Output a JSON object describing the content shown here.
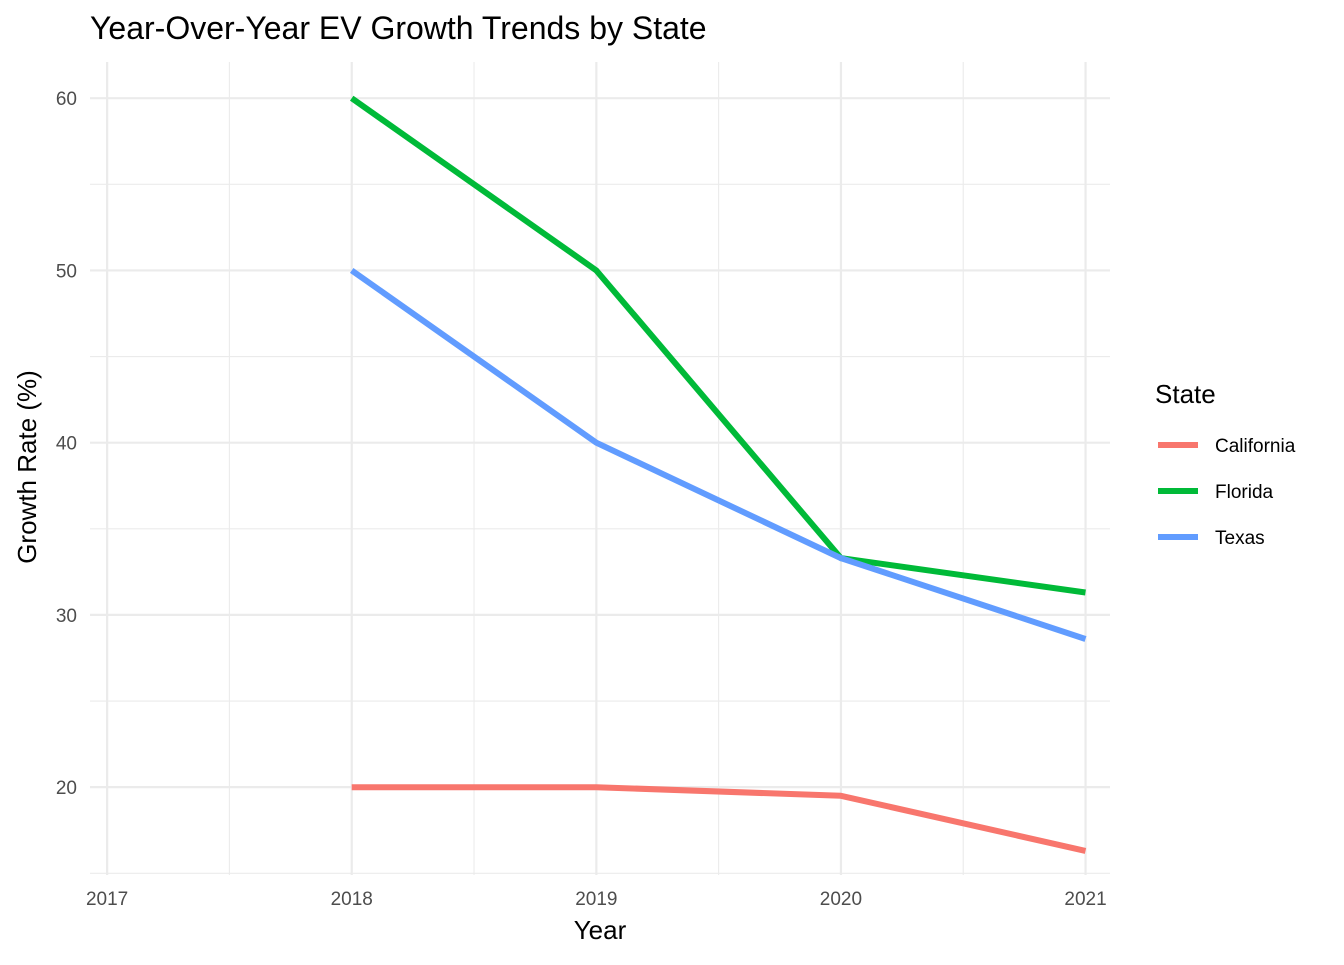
{
  "chart_data": {
    "type": "line",
    "title": "Year-Over-Year EV Growth Trends by State",
    "xlabel": "Year",
    "ylabel": "Growth Rate (%)",
    "x_ticks": [
      "2017",
      "2018",
      "2019",
      "2020",
      "2021"
    ],
    "xlim": [
      2016.93,
      2021.1
    ],
    "y_ticks": [
      "20",
      "30",
      "40",
      "50",
      "60"
    ],
    "ylim": [
      14.9,
      62.1
    ],
    "grid": true,
    "legend": {
      "title": "State",
      "position": "right"
    },
    "x": [
      2018,
      2019,
      2020,
      2021
    ],
    "series": [
      {
        "name": "California",
        "color": "#F8766D",
        "values": [
          20.0,
          20.0,
          19.5,
          16.3
        ]
      },
      {
        "name": "Florida",
        "color": "#00BA38",
        "values": [
          60.0,
          50.0,
          33.3,
          31.3
        ]
      },
      {
        "name": "Texas",
        "color": "#619CFF",
        "values": [
          50.0,
          40.0,
          33.3,
          28.6
        ]
      }
    ]
  }
}
